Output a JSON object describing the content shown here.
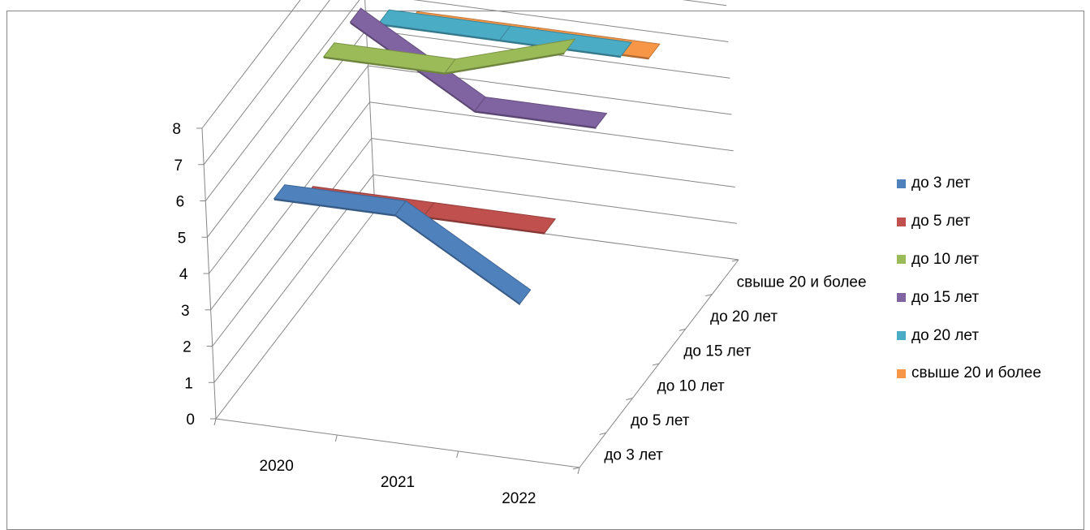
{
  "chart_data": {
    "type": "line",
    "title": "",
    "xlabel": "",
    "ylabel": "",
    "ylim": [
      0,
      8
    ],
    "y_ticks": [
      "0",
      "1",
      "2",
      "3",
      "4",
      "5",
      "6",
      "7",
      "8"
    ],
    "categories": [
      "2020",
      "2021",
      "2022"
    ],
    "depth_categories": [
      "до 3 лет",
      "до 5 лет",
      "до 10 лет",
      "до 15 лет",
      "до 20 лет",
      "свыше 20 и более"
    ],
    "series": [
      {
        "name": "до 3 лет",
        "color": "#4f81bd",
        "values": [
          6,
          6,
          4
        ]
      },
      {
        "name": "до 5 лет",
        "color": "#c0504d",
        "values": [
          5,
          5,
          5
        ]
      },
      {
        "name": "до 10 лет",
        "color": "#9bbb59",
        "values": [
          8,
          8,
          9
        ]
      },
      {
        "name": "до 15 лет",
        "color": "#8064a2",
        "values": [
          8,
          6,
          6
        ]
      },
      {
        "name": "до 20 лет",
        "color": "#4bacc6",
        "values": [
          7,
          7,
          7
        ]
      },
      {
        "name": "свыше 20 и более",
        "color": "#f79646",
        "values": [
          6,
          6,
          6
        ]
      }
    ],
    "grid": true,
    "legend_position": "right",
    "projection": "3d"
  }
}
